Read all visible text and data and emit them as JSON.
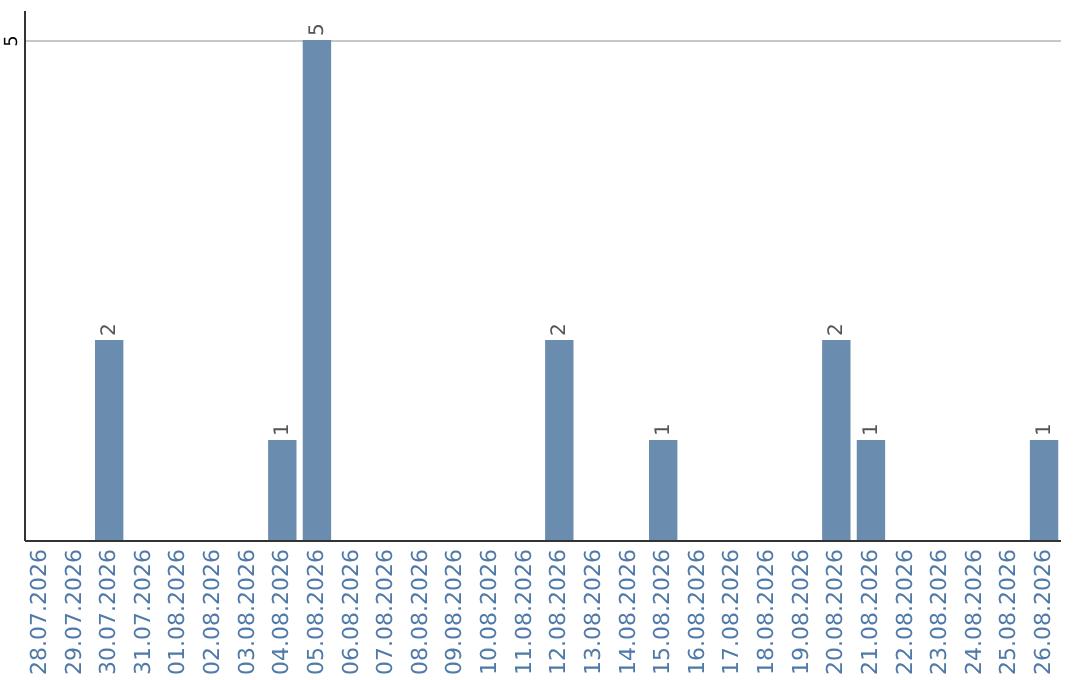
{
  "chart_data": {
    "type": "bar",
    "categories": [
      "28.07.2026",
      "29.07.2026",
      "30.07.2026",
      "31.07.2026",
      "01.08.2026",
      "02.08.2026",
      "03.08.2026",
      "04.08.2026",
      "05.08.2026",
      "06.08.2026",
      "07.08.2026",
      "08.08.2026",
      "09.08.2026",
      "10.08.2026",
      "11.08.2026",
      "12.08.2026",
      "13.08.2026",
      "14.08.2026",
      "15.08.2026",
      "16.08.2026",
      "17.08.2026",
      "18.08.2026",
      "19.08.2026",
      "20.08.2026",
      "21.08.2026",
      "22.08.2026",
      "23.08.2026",
      "24.08.2026",
      "25.08.2026",
      "26.08.2026"
    ],
    "values": [
      0,
      0,
      2,
      0,
      0,
      0,
      0,
      1,
      5,
      0,
      0,
      0,
      0,
      0,
      0,
      2,
      0,
      0,
      1,
      0,
      0,
      0,
      0,
      2,
      1,
      0,
      0,
      0,
      0,
      1
    ],
    "value_labels": [
      null,
      null,
      "2",
      null,
      null,
      null,
      null,
      "1",
      "5",
      null,
      null,
      null,
      null,
      null,
      null,
      "2",
      null,
      null,
      "1",
      null,
      null,
      null,
      null,
      "2",
      "1",
      null,
      null,
      null,
      null,
      "1"
    ],
    "color": "#6a8caf",
    "ylim": [
      0,
      5.3
    ],
    "yticks": [
      5
    ],
    "grid": "y"
  }
}
